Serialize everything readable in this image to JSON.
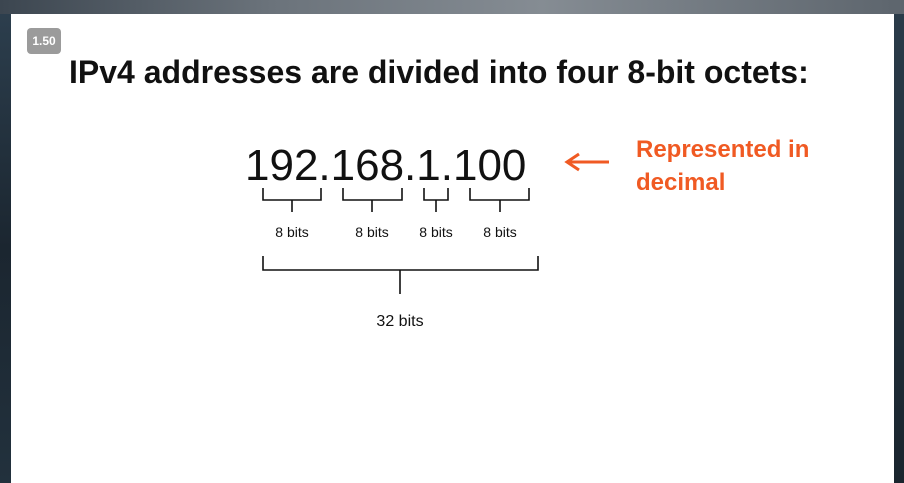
{
  "badge": "1.50",
  "title": "IPv4 addresses are divided into four 8-bit octets:",
  "address": "192.168.1.100",
  "note_line1": "Represented in",
  "note_line2": "decimal",
  "octet_labels": [
    "8 bits",
    "8 bits",
    "8 bits",
    "8 bits"
  ],
  "total_label": "32 bits",
  "colors": {
    "accent": "#f05a23",
    "text": "#111111",
    "badge": "#9b9b9b"
  }
}
